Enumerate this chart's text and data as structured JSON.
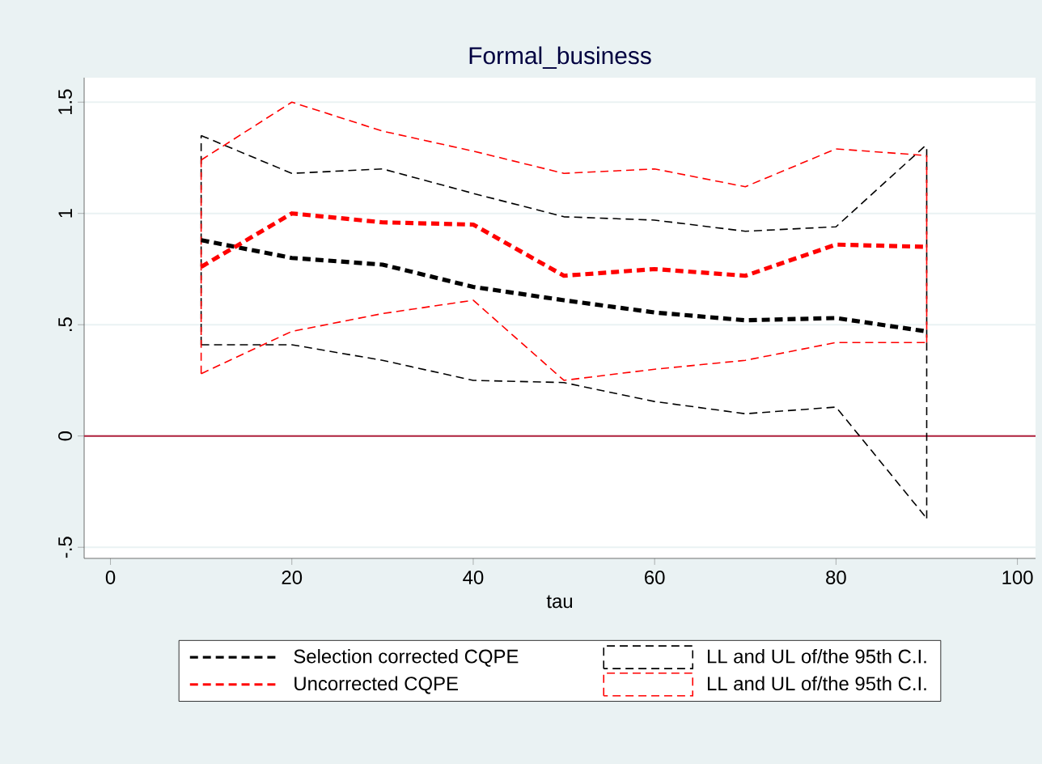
{
  "chart_data": {
    "type": "line",
    "title": "Formal_business",
    "xlabel": "tau",
    "x": [
      10,
      20,
      30,
      40,
      50,
      60,
      70,
      80,
      90
    ],
    "series": [
      {
        "name": "Selection corrected CQPE",
        "color": "#000000",
        "values": [
          0.88,
          0.8,
          0.77,
          0.67,
          0.61,
          0.555,
          0.52,
          0.53,
          0.47
        ],
        "line_style": "dashed"
      },
      {
        "name": "LL and UL of/the 95th C.I.",
        "color": "#000000",
        "values": [
          1.35,
          1.18,
          1.2,
          1.09,
          0.985,
          0.97,
          0.92,
          0.94,
          1.31
        ],
        "errors": [
          [
            0.41,
            1.35
          ],
          null,
          null,
          null,
          null,
          null,
          null,
          null,
          [
            -0.37,
            1.31
          ]
        ],
        "line_style": "dashed"
      },
      {
        "color": "#000000",
        "values": [
          0.41,
          0.41,
          0.34,
          0.25,
          0.24,
          0.155,
          0.1,
          0.13,
          -0.37
        ],
        "line_style": "dashed"
      },
      {
        "name": "Uncorrected CQPE",
        "color": "#ff0000",
        "values": [
          0.76,
          1.0,
          0.96,
          0.95,
          0.72,
          0.75,
          0.72,
          0.86,
          0.85
        ],
        "line_style": "dashed"
      },
      {
        "name": "LL and UL of/the 95th C.I.",
        "color": "#ff0000",
        "values": [
          1.24,
          1.5,
          1.37,
          1.28,
          1.18,
          1.2,
          1.12,
          1.29,
          1.26
        ],
        "errors": [
          [
            0.28,
            1.24
          ],
          null,
          null,
          null,
          null,
          null,
          null,
          null,
          [
            0.42,
            1.26
          ]
        ],
        "line_style": "dashed"
      },
      {
        "color": "#ff0000",
        "values": [
          0.28,
          0.47,
          0.55,
          0.61,
          0.25,
          0.3,
          0.34,
          0.42,
          0.42
        ],
        "line_style": "dashed"
      }
    ],
    "xlim": [
      -2.9,
      102
    ],
    "ylim": [
      -0.55,
      1.61
    ],
    "xticks": [
      0,
      20,
      40,
      60,
      80,
      100
    ],
    "yticks": [
      {
        "value": -0.5,
        "label": "-.5"
      },
      0,
      {
        "value": 0.5,
        "label": ".5"
      },
      1,
      1.5
    ],
    "ref_lines": [
      {
        "axis": "y",
        "value": 0,
        "color": "#b0203c"
      }
    ],
    "grid": "y",
    "legend": "bottom",
    "marker": "none"
  }
}
